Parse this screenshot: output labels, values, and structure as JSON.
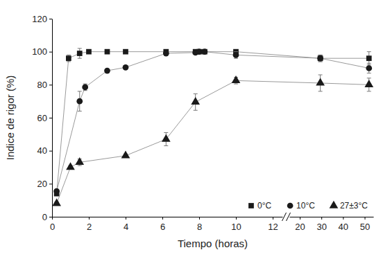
{
  "chart_data": {
    "type": "line",
    "x_label": "Tiempo (horas)",
    "y_label": "Indice de rigor (%)",
    "xlim": [
      0,
      54
    ],
    "x_break": [
      12,
      20
    ],
    "xticks": [
      0,
      2,
      4,
      6,
      8,
      10,
      12,
      20,
      30,
      40,
      50
    ],
    "ylim": [
      0,
      120
    ],
    "yticks": [
      0,
      20,
      40,
      60,
      80,
      100,
      120
    ],
    "grid": false,
    "legend": "lower right",
    "series": [
      {
        "name": "0°C",
        "color": "#1a1a1a",
        "marker": "square",
        "x": [
          0.25,
          0.9,
          1.5,
          2,
          3,
          4,
          6.2,
          7.8,
          8,
          8.3,
          10,
          29.5,
          52
        ],
        "values": [
          14,
          96,
          99,
          100,
          100,
          100,
          100,
          100,
          100,
          100,
          100,
          96,
          96
        ],
        "errors": [
          1,
          2,
          3,
          1,
          1,
          1,
          1,
          1,
          1,
          1,
          1,
          2,
          4
        ]
      },
      {
        "name": "10°C",
        "color": "#1a1a1a",
        "marker": "circle",
        "x": [
          0.25,
          1.5,
          1.8,
          3,
          4,
          6.2,
          7.8,
          8,
          8.3,
          10,
          29.5,
          52
        ],
        "values": [
          15.5,
          70,
          78.5,
          88.5,
          90.5,
          99,
          99.5,
          100,
          100,
          98,
          96,
          90
        ],
        "errors": [
          1,
          6,
          2,
          1,
          1,
          1,
          1,
          1,
          1,
          2,
          2,
          3
        ]
      },
      {
        "name": "27±3°C",
        "color": "#1a1a1a",
        "marker": "triangle",
        "x": [
          0.25,
          1,
          1.5,
          4,
          6.2,
          7.8,
          10,
          29.5,
          52
        ],
        "values": [
          8,
          30,
          33,
          37,
          47,
          69.5,
          82.5,
          81,
          80
        ],
        "errors": [
          1,
          1,
          2,
          1,
          4,
          5,
          2,
          5,
          4
        ]
      }
    ]
  }
}
